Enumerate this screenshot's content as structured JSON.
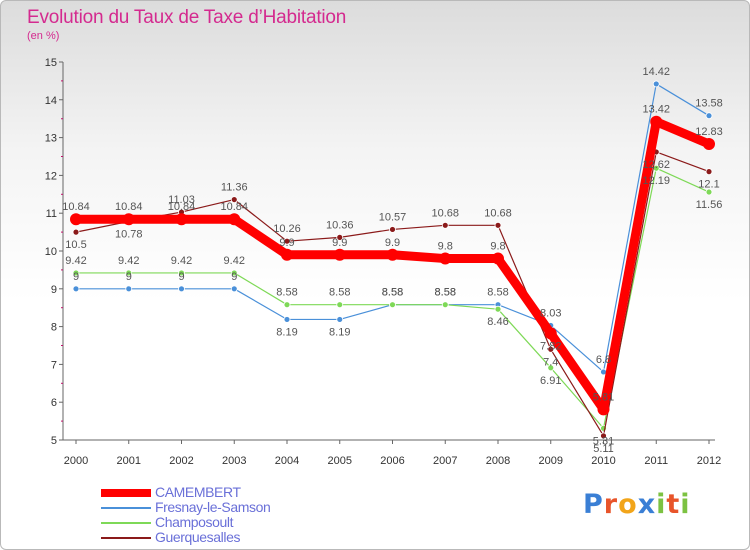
{
  "title": "Evolution du Taux de Taxe d’Habitation",
  "subtitle": "(en %)",
  "logo_text": "Proxiti",
  "colors": {
    "title": "#d42a8f",
    "legend_text": "#6a70d8",
    "axis": "#555555"
  },
  "chart_data": {
    "type": "line",
    "title": "Evolution du Taux de Taxe d’Habitation",
    "ylabel": "(en %)",
    "xlabel": "",
    "ylim": [
      5,
      15
    ],
    "yticks": [
      5,
      6,
      7,
      8,
      9,
      10,
      11,
      12,
      13,
      14,
      15
    ],
    "grid": false,
    "legend": "bottom-left",
    "x": [
      "2000",
      "2001",
      "2002",
      "2003",
      "2004",
      "2005",
      "2006",
      "2007",
      "2008",
      "2009",
      "2010",
      "2011",
      "2012"
    ],
    "series": [
      {
        "name": "CAMEMBERT",
        "color": "#ff0000",
        "values": [
          10.84,
          10.84,
          10.84,
          10.84,
          9.9,
          9.9,
          9.9,
          9.8,
          9.8,
          7.82,
          5.81,
          13.42,
          12.83
        ]
      },
      {
        "name": "Fresnay-le-Samson",
        "color": "#4a90d9",
        "values": [
          9,
          9,
          9,
          9,
          8.19,
          8.19,
          8.58,
          8.58,
          8.58,
          8.03,
          6.8,
          14.42,
          13.58
        ]
      },
      {
        "name": "Champosoult",
        "color": "#7ed957",
        "values": [
          9.42,
          9.42,
          9.42,
          9.42,
          8.58,
          8.58,
          8.58,
          8.58,
          8.46,
          6.91,
          5.31,
          12.19,
          11.56
        ]
      },
      {
        "name": "Guerquesalles",
        "color": "#8b1a1a",
        "values": [
          10.5,
          10.78,
          11.03,
          11.36,
          10.26,
          10.36,
          10.57,
          10.68,
          10.68,
          7.4,
          5.11,
          12.62,
          12.1
        ]
      }
    ],
    "point_labels": [
      [
        "10.84",
        "10.84",
        "10.84",
        "10.84",
        "9.9",
        "9.9",
        "9.9",
        "9.8",
        "9.8",
        "7.82",
        "5.81",
        "13.42",
        "12.83"
      ],
      [
        "9",
        "9",
        "9",
        "9",
        "8.19",
        "8.19",
        "8.58",
        "8.58",
        "8.58",
        "8.03",
        "6.8",
        "14.42",
        "13.58"
      ],
      [
        "9.42",
        "9.42",
        "9.42",
        "9.42",
        "8.58",
        "8.58",
        "8.58",
        "8.58",
        "8.46",
        "6.91",
        "5.31",
        "12.19",
        "11.56"
      ],
      [
        "10.5",
        "10.78",
        "11.03",
        "11.36",
        "10.26",
        "10.36",
        "10.57",
        "10.68",
        "10.68",
        "7.4",
        "5.11",
        "12.62",
        "12.1"
      ]
    ]
  }
}
